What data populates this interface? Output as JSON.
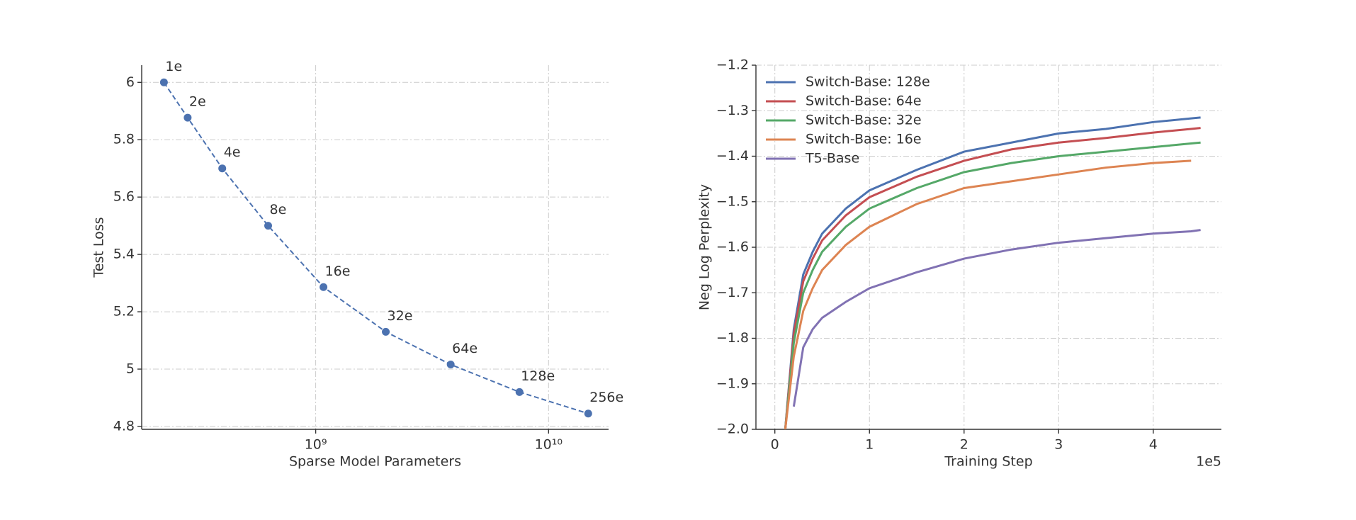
{
  "chart_data": [
    {
      "type": "line",
      "log_x": true,
      "linestyle": "dashed",
      "markers": true,
      "color": "#4c72b0",
      "xlabel": "Sparse Model Parameters",
      "ylabel": "Test Loss",
      "x": [
        223000000,
        282000000,
        397000000,
        625000000,
        1080000000,
        2000000000,
        3800000000,
        7500000000,
        14800000000
      ],
      "values": [
        6.0,
        5.877,
        5.7,
        5.5,
        5.286,
        5.13,
        5.016,
        4.92,
        4.845
      ],
      "point_labels": [
        "1e",
        "2e",
        "4e",
        "8e",
        "16e",
        "32e",
        "64e",
        "128e",
        "256e"
      ],
      "xlim": [
        179000000,
        18100000000
      ],
      "ylim": [
        4.79,
        6.06
      ],
      "xticks": [
        {
          "value": 1000000000,
          "label": "10⁹"
        },
        {
          "value": 10000000000,
          "label": "10¹⁰"
        }
      ],
      "yticks": [
        4.8,
        5.0,
        5.2,
        5.4,
        5.6,
        5.8,
        6.0
      ],
      "grid": true
    },
    {
      "type": "line",
      "xlabel": "Training Step",
      "ylabel": "Neg Log Perplexity",
      "x_offset_label": "1e5",
      "legend": "upper left",
      "grid": true,
      "x": [
        0.11,
        0.2,
        0.3,
        0.4,
        0.5,
        0.75,
        1,
        1.5,
        2,
        2.5,
        3,
        3.5,
        4,
        4.4,
        4.5
      ],
      "series": [
        {
          "name": "Switch-Base: 128e",
          "color": "#4c72b0",
          "values": [
            -2.0,
            -1.78,
            -1.66,
            -1.61,
            -1.57,
            -1.515,
            -1.475,
            -1.43,
            -1.39,
            -1.37,
            -1.35,
            -1.34,
            -1.325,
            -1.317,
            -1.315
          ]
        },
        {
          "name": "Switch-Base: 64e",
          "color": "#c44e52",
          "values": [
            -2.0,
            -1.79,
            -1.675,
            -1.625,
            -1.585,
            -1.53,
            -1.49,
            -1.445,
            -1.41,
            -1.385,
            -1.37,
            -1.36,
            -1.348,
            -1.34,
            -1.338
          ]
        },
        {
          "name": "Switch-Base: 32e",
          "color": "#55a868",
          "values": [
            -2.0,
            -1.81,
            -1.7,
            -1.65,
            -1.61,
            -1.555,
            -1.515,
            -1.47,
            -1.435,
            -1.415,
            -1.4,
            -1.39,
            -1.38,
            -1.372,
            -1.37
          ]
        },
        {
          "name": "Switch-Base: 16e",
          "color": "#dd8452",
          "values": [
            -2.0,
            -1.84,
            -1.74,
            -1.69,
            -1.65,
            -1.595,
            -1.555,
            -1.505,
            -1.47,
            -1.455,
            -1.44,
            -1.425,
            -1.415,
            -1.41,
            null
          ]
        },
        {
          "name": "T5-Base",
          "color": "#8172b3",
          "values": [
            null,
            -1.95,
            -1.82,
            -1.78,
            -1.755,
            -1.72,
            -1.69,
            -1.655,
            -1.625,
            -1.605,
            -1.59,
            -1.58,
            -1.57,
            -1.565,
            -1.562
          ]
        }
      ],
      "xlim": [
        -0.2,
        4.72
      ],
      "ylim": [
        -2.0,
        -1.2
      ],
      "xticks": [
        0,
        1,
        2,
        3,
        4
      ],
      "yticks": [
        {
          "value": -2.0,
          "label": "−2.0"
        },
        {
          "value": -1.9,
          "label": "−1.9"
        },
        {
          "value": -1.8,
          "label": "−1.8"
        },
        {
          "value": -1.7,
          "label": "−1.7"
        },
        {
          "value": -1.6,
          "label": "−1.6"
        },
        {
          "value": -1.5,
          "label": "−1.5"
        },
        {
          "value": -1.4,
          "label": "−1.4"
        },
        {
          "value": -1.3,
          "label": "−1.3"
        },
        {
          "value": -1.2,
          "label": "−1.2"
        }
      ]
    }
  ]
}
